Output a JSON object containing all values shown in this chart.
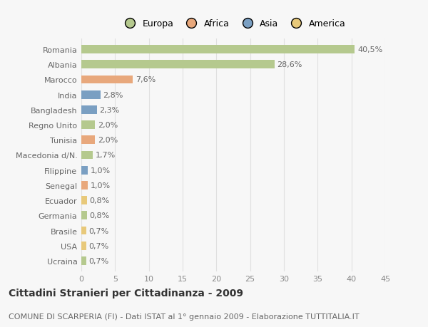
{
  "categories": [
    "Romania",
    "Albania",
    "Marocco",
    "India",
    "Bangladesh",
    "Regno Unito",
    "Tunisia",
    "Macedonia d/N.",
    "Filippine",
    "Senegal",
    "Ecuador",
    "Germania",
    "Brasile",
    "USA",
    "Ucraina"
  ],
  "values": [
    40.5,
    28.6,
    7.6,
    2.8,
    2.3,
    2.0,
    2.0,
    1.7,
    1.0,
    1.0,
    0.8,
    0.8,
    0.7,
    0.7,
    0.7
  ],
  "labels": [
    "40,5%",
    "28,6%",
    "7,6%",
    "2,8%",
    "2,3%",
    "2,0%",
    "2,0%",
    "1,7%",
    "1,0%",
    "1,0%",
    "0,8%",
    "0,8%",
    "0,7%",
    "0,7%",
    "0,7%"
  ],
  "colors": [
    "#b5c98e",
    "#b5c98e",
    "#e8a87c",
    "#7a9fc2",
    "#7a9fc2",
    "#b5c98e",
    "#e8a87c",
    "#b5c98e",
    "#7a9fc2",
    "#e8a87c",
    "#e8c97a",
    "#b5c98e",
    "#e8c97a",
    "#e8c97a",
    "#b5c98e"
  ],
  "legend_labels": [
    "Europa",
    "Africa",
    "Asia",
    "America"
  ],
  "legend_colors": [
    "#b5c98e",
    "#e8a87c",
    "#7a9fc2",
    "#e8c97a"
  ],
  "title": "Cittadini Stranieri per Cittadinanza - 2009",
  "subtitle": "COMUNE DI SCARPERIA (FI) - Dati ISTAT al 1° gennaio 2009 - Elaborazione TUTTITALIA.IT",
  "xlim": [
    0,
    45
  ],
  "xticks": [
    0,
    5,
    10,
    15,
    20,
    25,
    30,
    35,
    40,
    45
  ],
  "background_color": "#f7f7f7",
  "grid_color": "#e0e0e0",
  "bar_height": 0.55,
  "title_fontsize": 10,
  "subtitle_fontsize": 8,
  "tick_fontsize": 8,
  "label_fontsize": 8,
  "ytick_fontsize": 8
}
